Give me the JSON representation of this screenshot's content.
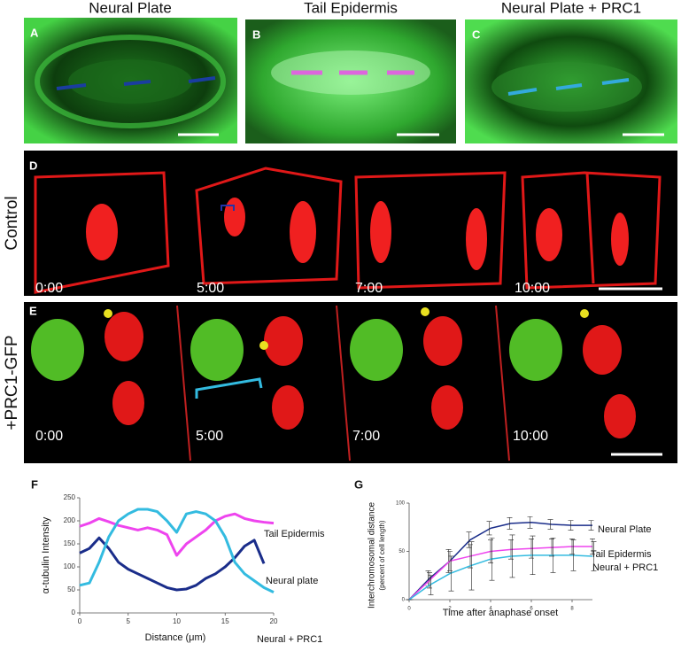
{
  "panels": {
    "column_titles": [
      "Neural Plate",
      "Tail Epidermis",
      "Neural Plate + PRC1"
    ],
    "letters": [
      "A",
      "B",
      "C",
      "D",
      "E",
      "F",
      "G"
    ],
    "row_labels": [
      "Control",
      "+PRC1-GFP"
    ],
    "control_times": [
      "0:00",
      "5:00",
      "7:00",
      "10:00"
    ],
    "prc1_times": [
      "0:00",
      "5:00",
      "7:00",
      "10:00"
    ]
  },
  "chart_data": [
    {
      "type": "line",
      "x_label": "Distance (μm)",
      "y_label": "α-tubulin Intensity",
      "x": [
        0,
        1,
        2,
        3,
        4,
        5,
        6,
        7,
        8,
        9,
        10,
        11,
        12,
        13,
        14,
        15,
        16,
        17,
        18,
        19,
        20
      ],
      "xlim": [
        0,
        20
      ],
      "xticks": [
        0,
        5,
        10,
        15,
        20
      ],
      "ylim": [
        0,
        250
      ],
      "yticks": [
        0,
        50,
        100,
        150,
        200,
        250
      ],
      "series": [
        {
          "name": "Tail Epidermis",
          "color": "#ee44ee",
          "values": [
            188,
            195,
            205,
            198,
            190,
            185,
            180,
            185,
            180,
            170,
            125,
            150,
            165,
            180,
            200,
            210,
            215,
            205,
            200,
            197,
            195
          ]
        },
        {
          "name": "Neural plate",
          "color": "#1a2d8a",
          "values": [
            130,
            140,
            163,
            140,
            110,
            95,
            85,
            75,
            65,
            55,
            50,
            52,
            60,
            75,
            85,
            100,
            120,
            145,
            158,
            107,
            null
          ]
        },
        {
          "name": "Neural + PRC1",
          "color": "#33bbe0",
          "values": [
            60,
            65,
            110,
            165,
            200,
            215,
            225,
            225,
            220,
            200,
            175,
            215,
            220,
            215,
            200,
            165,
            110,
            85,
            70,
            55,
            45
          ]
        }
      ]
    },
    {
      "type": "line",
      "x_label": "Time after anaphase onset",
      "y_label": "Interchromosomal distance",
      "y_sublabel": "(percent of cell length)",
      "x": [
        0,
        1,
        2,
        3,
        4,
        5,
        6,
        7,
        8,
        9
      ],
      "xlim": [
        0,
        9
      ],
      "xticks": [
        0,
        2,
        4,
        6,
        8
      ],
      "ylim": [
        0,
        100
      ],
      "yticks": [
        0,
        50,
        100
      ],
      "series": [
        {
          "name": "Neural Plate",
          "color": "#1a2d8a",
          "values": [
            0,
            22,
            40,
            62,
            74,
            79,
            80,
            78,
            77,
            77
          ],
          "errors": [
            0,
            8,
            12,
            8,
            7,
            6,
            6,
            5,
            5,
            5
          ]
        },
        {
          "name": "Tail Epidermis",
          "color": "#ee44ee",
          "values": [
            0,
            20,
            40,
            45,
            50,
            52,
            53,
            54,
            55,
            55
          ],
          "errors": [
            0,
            8,
            10,
            12,
            12,
            10,
            10,
            9,
            8,
            8
          ]
        },
        {
          "name": "Neural + PRC1",
          "color": "#33bbe0",
          "values": [
            0,
            15,
            27,
            35,
            42,
            45,
            46,
            46,
            46,
            45
          ],
          "errors": [
            0,
            10,
            18,
            25,
            22,
            22,
            20,
            18,
            16,
            15
          ]
        }
      ]
    }
  ]
}
